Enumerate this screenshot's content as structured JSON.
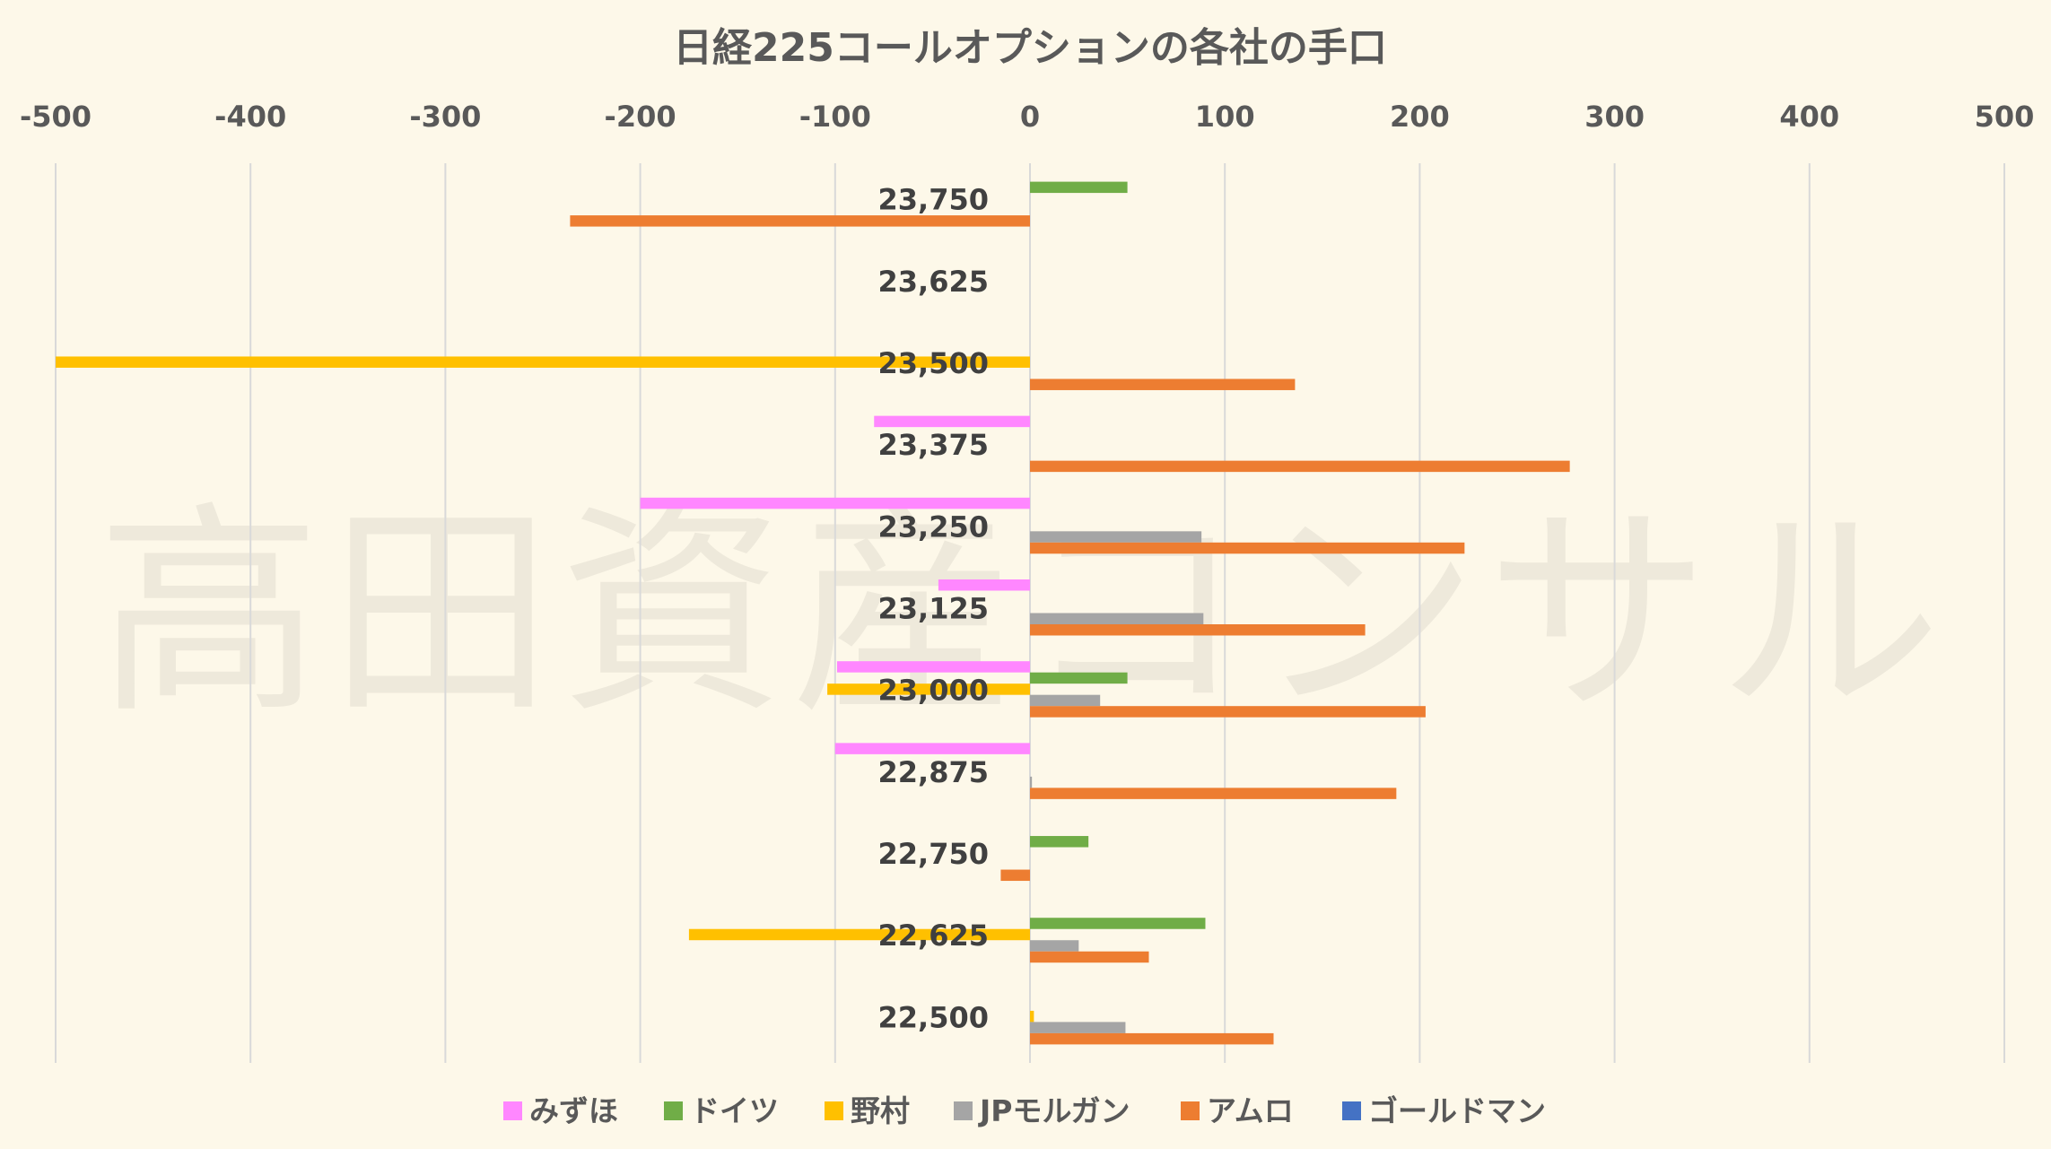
{
  "watermark": "高田資産コンサル",
  "chart_data": {
    "type": "bar",
    "orientation": "horizontal",
    "title": "日経225コールオプションの各社の手口",
    "xlim": [
      -500,
      500
    ],
    "xticks": [
      "-500",
      "-400",
      "-300",
      "-200",
      "-100",
      "0",
      "100",
      "200",
      "300",
      "400",
      "500"
    ],
    "x_axis_position": "top",
    "grid": "vertical",
    "legend_position": "bottom",
    "categories": [
      "23,750",
      "23,625",
      "23,500",
      "23,375",
      "23,250",
      "23,125",
      "23,000",
      "22,875",
      "22,750",
      "22,625",
      "22,500"
    ],
    "series": [
      {
        "name": "みずほ",
        "color": "#ff87ff",
        "values": [
          0,
          0,
          0,
          -80,
          -200,
          -47,
          -99,
          -100,
          0,
          0,
          0
        ]
      },
      {
        "name": "ドイツ",
        "color": "#70ad47",
        "values": [
          50,
          0,
          0,
          0,
          0,
          0,
          50,
          0,
          30,
          90,
          0
        ]
      },
      {
        "name": "野村",
        "color": "#ffc000",
        "values": [
          0,
          0,
          -500,
          0,
          0,
          0,
          -104,
          0,
          0,
          -175,
          2
        ]
      },
      {
        "name": "JPモルガン",
        "color": "#a5a5a5",
        "values": [
          0,
          0,
          0,
          0,
          88,
          89,
          36,
          1,
          0,
          25,
          49
        ]
      },
      {
        "name": "アムロ",
        "color": "#ed7d31",
        "values": [
          -236,
          0,
          136,
          277,
          223,
          172,
          203,
          188,
          -15,
          61,
          125
        ]
      },
      {
        "name": "ゴールドマン",
        "color": "#4472c4",
        "values": [
          0,
          0,
          0,
          0,
          0,
          0,
          0,
          0,
          0,
          0,
          0
        ]
      }
    ]
  }
}
